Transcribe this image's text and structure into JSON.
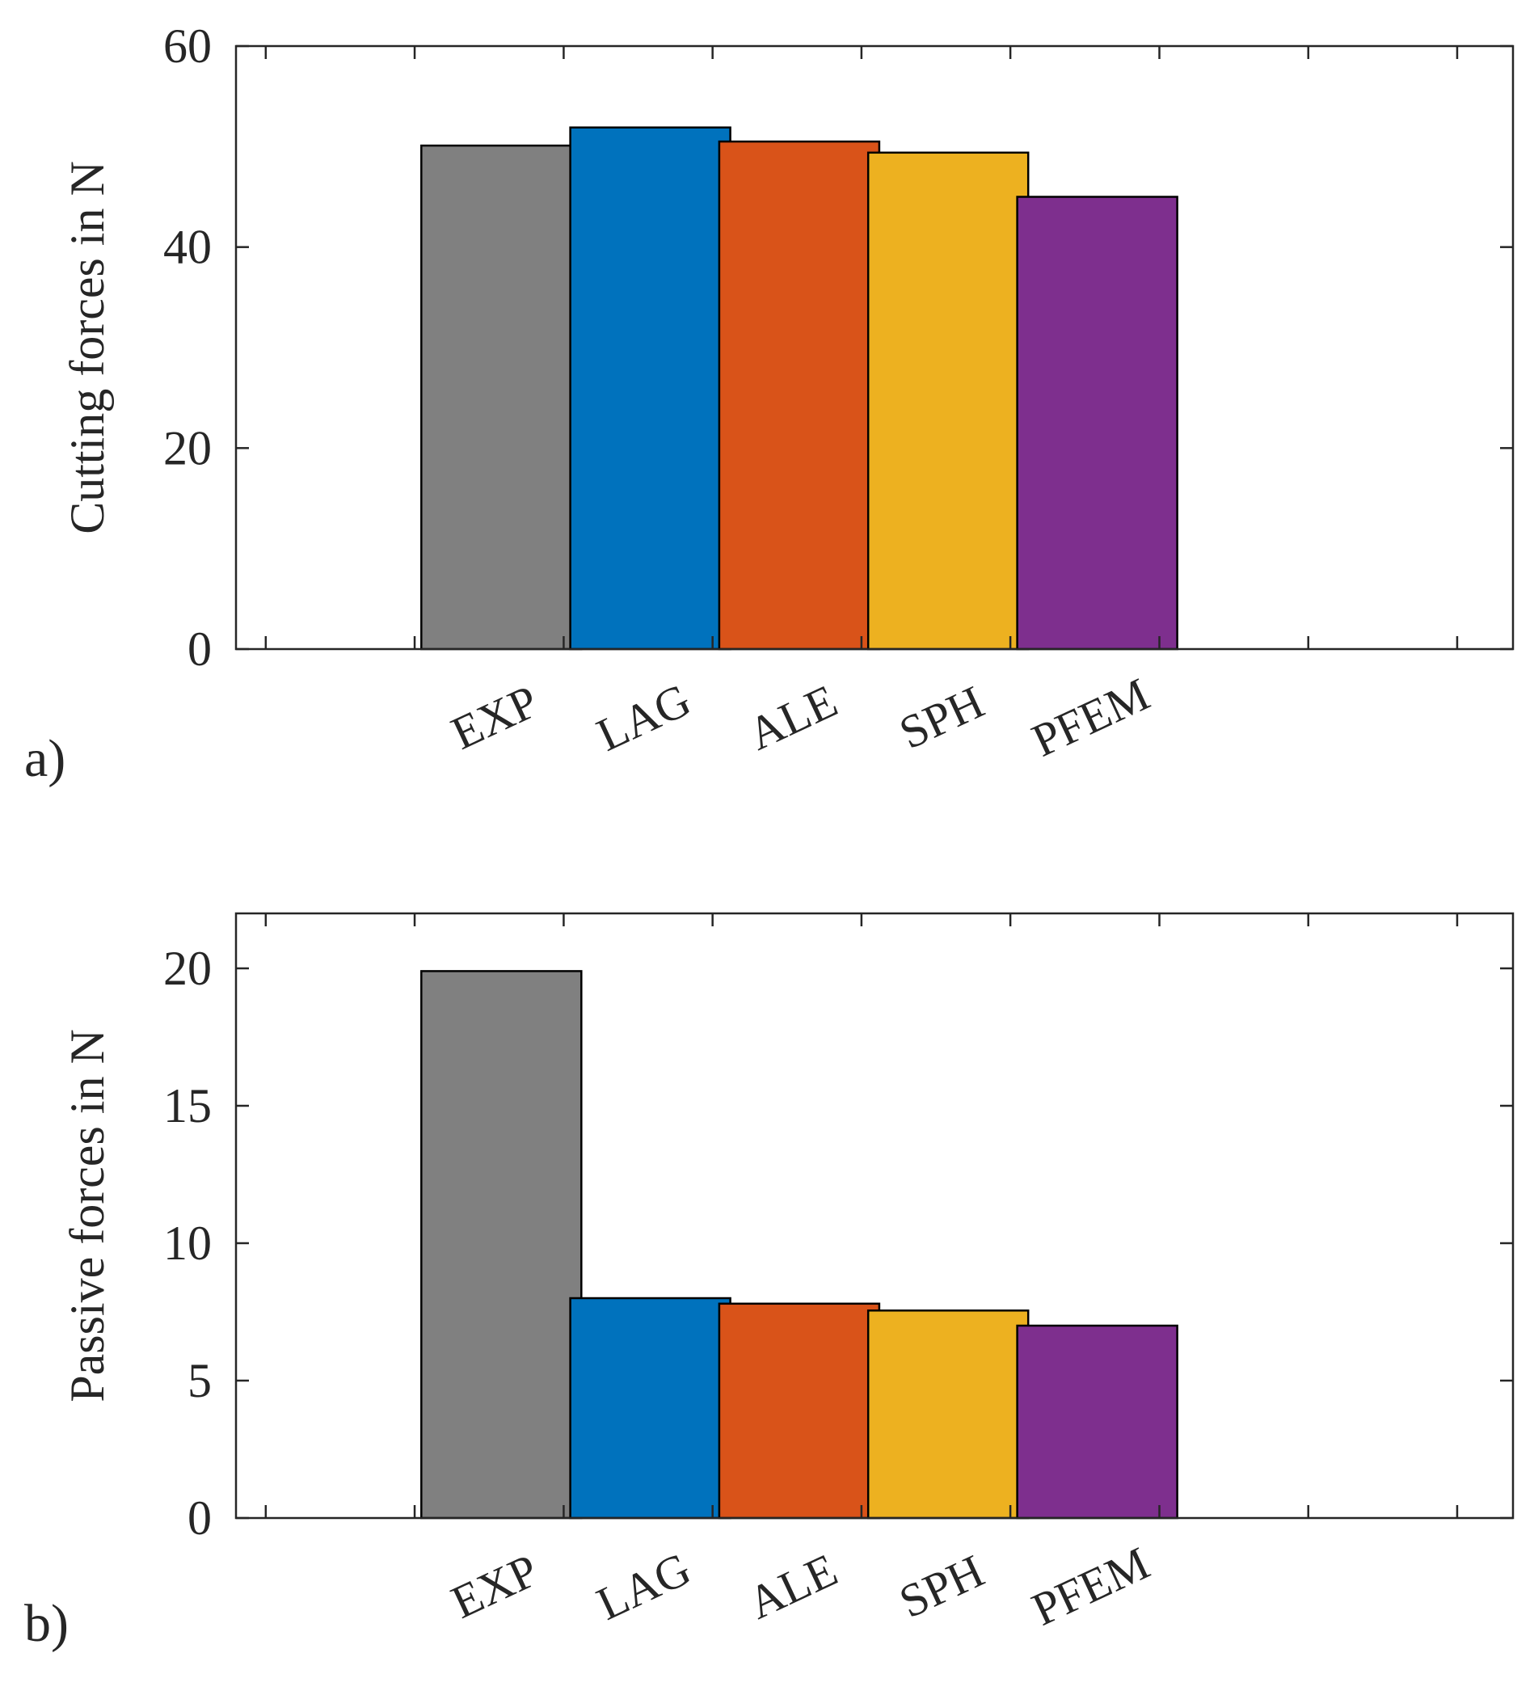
{
  "chart_data": [
    {
      "panel_label": "a)",
      "type": "bar",
      "categories": [
        "EXP",
        "LAG",
        "ALE",
        "SPH",
        "PFEM"
      ],
      "values": [
        50.1,
        51.9,
        50.5,
        49.4,
        45.0
      ],
      "colors": [
        "#808080",
        "#0072BD",
        "#D95319",
        "#EDB120",
        "#7E2F8E"
      ],
      "ylabel": "Cutting forces in N",
      "ylim": [
        0,
        60
      ],
      "yticks": [
        0,
        20,
        40,
        60
      ],
      "ytick_labels": [
        "0",
        "20",
        "40",
        "60"
      ],
      "grid": false,
      "legend": false
    },
    {
      "panel_label": "b)",
      "type": "bar",
      "categories": [
        "EXP",
        "LAG",
        "ALE",
        "SPH",
        "PFEM"
      ],
      "values": [
        19.9,
        8.0,
        7.8,
        7.55,
        7.0
      ],
      "colors": [
        "#808080",
        "#0072BD",
        "#D95319",
        "#EDB120",
        "#7E2F8E"
      ],
      "ylabel": "Passive forces in N",
      "ylim": [
        0,
        22
      ],
      "yticks": [
        0,
        5,
        10,
        15,
        20
      ],
      "ytick_labels": [
        "0",
        "5",
        "10",
        "15",
        "20"
      ],
      "grid": false,
      "legend": false
    }
  ]
}
